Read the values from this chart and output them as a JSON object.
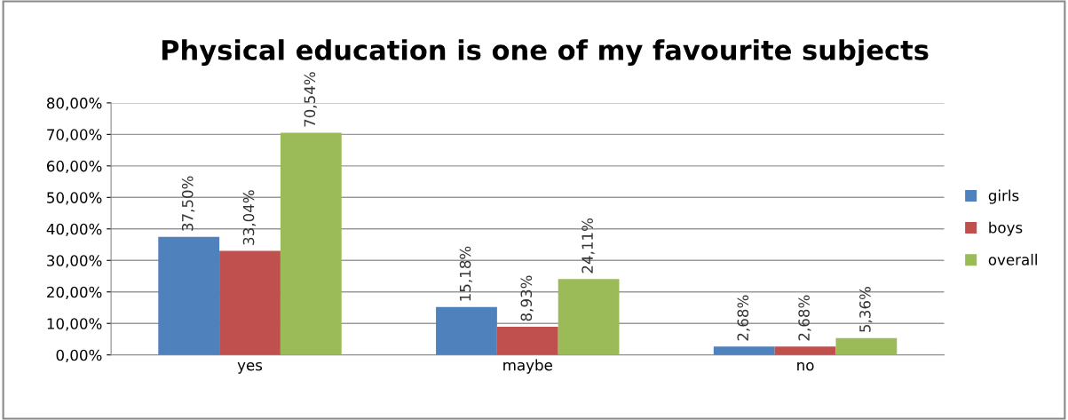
{
  "chart_data": {
    "type": "bar",
    "title": "Physical education is one of my favourite subjects",
    "categories": [
      "yes",
      "maybe",
      "no"
    ],
    "series": [
      {
        "name": "girls",
        "color": "#4f81bd",
        "values": [
          37.5,
          15.18,
          2.68
        ],
        "value_labels": [
          "37,50%",
          "15,18%",
          "2,68%"
        ]
      },
      {
        "name": "boys",
        "color": "#c0504d",
        "values": [
          33.04,
          8.93,
          2.68
        ],
        "value_labels": [
          "33,04%",
          "8,93%",
          "2,68%"
        ]
      },
      {
        "name": "overall",
        "color": "#9bbb59",
        "values": [
          70.54,
          24.11,
          5.36
        ],
        "value_labels": [
          "70,54%",
          "24,11%",
          "5,36%"
        ]
      }
    ],
    "ylim": [
      0,
      80
    ],
    "yticks": [
      {
        "value": 0,
        "label": "0,00%"
      },
      {
        "value": 10,
        "label": "10,00%"
      },
      {
        "value": 20,
        "label": "20,00%"
      },
      {
        "value": 30,
        "label": "30,00%"
      },
      {
        "value": 40,
        "label": "40,00%"
      },
      {
        "value": 50,
        "label": "50,00%"
      },
      {
        "value": 60,
        "label": "60,00%"
      },
      {
        "value": 70,
        "label": "70,00%"
      },
      {
        "value": 80,
        "label": "80,00%"
      }
    ],
    "grid": "y",
    "legend": "right"
  }
}
